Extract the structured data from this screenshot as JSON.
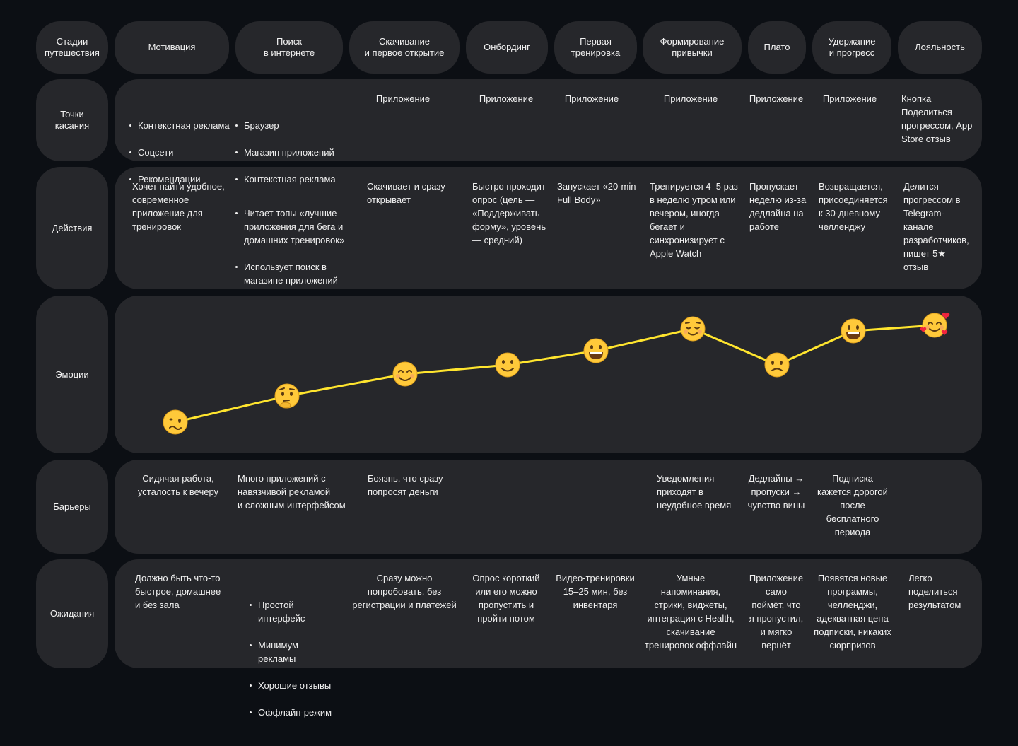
{
  "rows": {
    "stages": "Стадии\nпутешествия",
    "touchpoints": "Точки\nкасания",
    "actions": "Действия",
    "emotions": "Эмоции",
    "barriers": "Барьеры",
    "expectations": "Ожидания"
  },
  "stages": [
    "Мотивация",
    "Поиск\nв интернете",
    "Скачивание\nи первое открытие",
    "Онбординг",
    "Первая\nтренировка",
    "Формирование\nпривычки",
    "Плато",
    "Удержание\nи прогресс",
    "Лояльность"
  ],
  "touchpoints": {
    "c1": [
      "Контекстная реклама",
      "Соцсети",
      "Рекомендации"
    ],
    "c2": [
      "Браузер",
      "Магазин приложений",
      "Контекстная реклама"
    ],
    "c3": "Приложение",
    "c4": "Приложение",
    "c5": "Приложение",
    "c6": "Приложение",
    "c7": "Приложение",
    "c8": "Приложение",
    "c9": "Кнопка\nПоделиться\nпрогрессом, App\nStore отзыв"
  },
  "actions": {
    "c1": "Хочет найти удобное,\nсовременное\nприложение для\nтренировок",
    "c2": [
      "Читает топы «лучшие\nприложения для бега и\nдомашних тренировок»",
      "Использует поиск в\nмагазине приложений"
    ],
    "c3": "Скачивает и сразу\nоткрывает",
    "c4": "Быстро проходит\nопрос (цель —\n«Поддерживать\nформу», уровень\n— средний)",
    "c5": "Запускает «20-min\nFull Body»",
    "c6": "Тренируется 4–5 раз\nв неделю утром или\nвечером, иногда\nбегает и\nсинхронизирует с\nApple Watch",
    "c7": "Пропускает\nнеделю из-за\nдедлайна на\nработе",
    "c8": "Возвращается,\nприсоединяется\nк 30-дневному\nчелленджу",
    "c9": "Делится\nпрогрессом в\nTelegram-\nканале\nразработчиков,\nпишет 5★\nотзыв"
  },
  "emotion_curve": {
    "stages": [
      "Мотивация",
      "Поиск в интернете",
      "Скачивание и первое открытие",
      "Онбординг",
      "Первая тренировка",
      "Формирование привычки",
      "Плато",
      "Удержание и прогресс",
      "Лояльность"
    ],
    "faces": [
      "woozy",
      "thinking",
      "smiling",
      "slight-smile",
      "grinning",
      "relieved",
      "confused",
      "grinning",
      "smiling-with-hearts"
    ],
    "line_color": "#ffe52e",
    "face_color": "#ffc93a"
  },
  "barriers": {
    "c1": "Сидячая работа,\nусталость к вечеру",
    "c2": "Много приложений с\nнавязчивой рекламой\nи сложным интерфейсом",
    "c3": "Боязнь, что сразу\nпопросят деньги",
    "c6": "Уведомления\nприходят в\nнеудобное время",
    "c7": "Дедлайны →\nпропуски →\nчувство вины",
    "c8": "Подписка\nкажется дорогой\nпосле\nбесплатного\nпериода"
  },
  "expectations": {
    "c1": "Должно быть что-то\nбыстрое, домашнее\nи без зала",
    "c2": [
      "Простой\nинтерфейс",
      "Минимум\nрекламы",
      "Хорошие отзывы",
      "Оффлайн-режим"
    ],
    "c3": "Сразу можно\nпопробовать, без\nрегистрации и платежей",
    "c4": "Опрос короткий\nили его можно\nпропустить и\nпройти потом",
    "c5": "Видео-тренировки\n15–25 мин, без\nинвентаря",
    "c6": "Умные\nнапоминания,\nстрики, виджеты,\nинтеграция с Health,\nскачивание\nтренировок оффлайн",
    "c7": "Приложение\nсамо\nпоймёт, что\nя пропустил,\nи мягко\nвернёт",
    "c8": "Появятся новые\nпрограммы,\nчелленджи,\nадекватная цена\nподписки, никаких\nсюрпризов",
    "c9": "Легко\nподелиться\nрезультатом"
  },
  "colors": {
    "background": "#0c0f14",
    "panel": "#26272b"
  }
}
